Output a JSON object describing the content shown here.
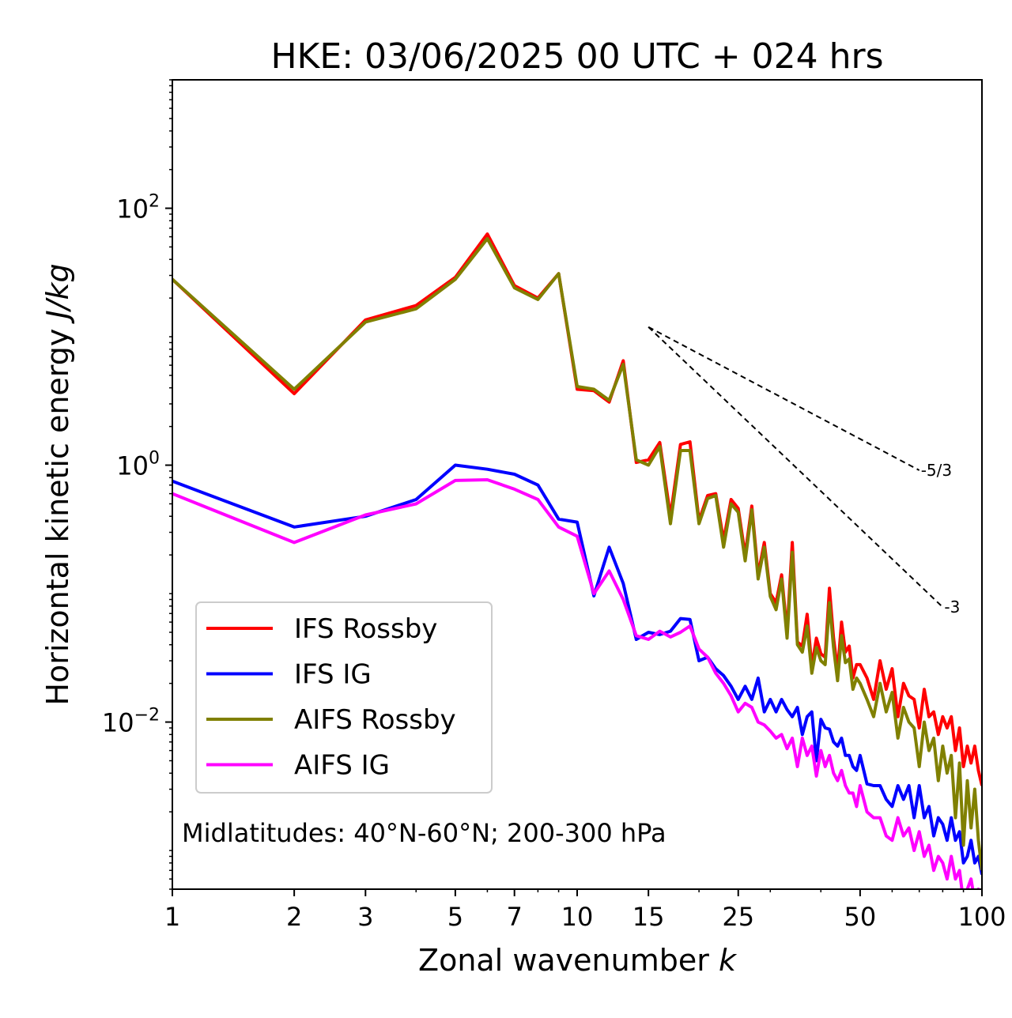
{
  "chart_data": {
    "type": "line",
    "title": "HKE: 03/06/2025 00 UTC + 024 hrs",
    "xlabel": "Zonal wavenumber",
    "xlabel_var": "k",
    "ylabel": "Horizontal kinetic energy",
    "ylabel_unit": "J/kg",
    "xscale": "log",
    "yscale": "log",
    "xlim": [
      1,
      100
    ],
    "ylim": [
      0.0005,
      1000
    ],
    "x_ticks": [
      1,
      2,
      3,
      5,
      7,
      10,
      15,
      25,
      50,
      100
    ],
    "x_tick_labels": [
      "1",
      "2",
      "3",
      "5",
      "7",
      "10",
      "15",
      "25",
      "50",
      "100"
    ],
    "y_ticks": [
      0.01,
      1,
      100
    ],
    "y_tick_labels": [
      {
        "base": "10",
        "exp": "−2"
      },
      {
        "base": "10",
        "exp": "0"
      },
      {
        "base": "10",
        "exp": "2"
      }
    ],
    "legend_position": "lower-left",
    "annotation": "Midlatitudes: 40°N-60°N; 200-300 hPa",
    "reference_slopes": [
      {
        "label": "-5/3",
        "slope": -1.6667,
        "x": [
          15,
          70
        ],
        "y0": 11.9
      },
      {
        "label": "-3",
        "slope": -3,
        "x": [
          15,
          80
        ],
        "y0": 11.9
      }
    ],
    "series": [
      {
        "name": "IFS Rossby",
        "color": "#ff0000",
        "x": [
          1,
          2,
          3,
          4,
          5,
          6,
          7,
          8,
          9,
          10,
          11,
          12,
          13,
          14,
          15,
          16,
          17,
          18,
          19,
          20,
          21,
          22,
          23,
          24,
          25,
          26,
          27,
          28,
          29,
          30,
          31,
          32,
          33,
          34,
          35,
          36,
          37,
          38,
          39,
          40,
          41,
          42,
          43,
          44,
          45,
          46,
          47,
          48,
          49,
          50,
          52,
          54,
          56,
          58,
          60,
          62,
          64,
          66,
          68,
          70,
          72,
          74,
          76,
          78,
          80,
          82,
          84,
          86,
          88,
          90,
          92,
          94,
          96,
          98,
          100
        ],
        "y": [
          28,
          3.6,
          13.5,
          17.5,
          29,
          63,
          25,
          20,
          31,
          3.9,
          3.8,
          3.1,
          6.5,
          1.05,
          1.1,
          1.5,
          0.4,
          1.45,
          1.52,
          0.37,
          0.58,
          0.6,
          0.26,
          0.54,
          0.46,
          0.2,
          0.48,
          0.14,
          0.25,
          0.1,
          0.085,
          0.14,
          0.05,
          0.25,
          0.042,
          0.039,
          0.069,
          0.027,
          0.045,
          0.034,
          0.032,
          0.11,
          0.045,
          0.025,
          0.06,
          0.035,
          0.039,
          0.022,
          0.028,
          0.028,
          0.022,
          0.015,
          0.03,
          0.018,
          0.026,
          0.011,
          0.02,
          0.016,
          0.015,
          0.009,
          0.018,
          0.011,
          0.012,
          0.008,
          0.011,
          0.009,
          0.011,
          0.006,
          0.009,
          0.0045,
          0.0065,
          0.0048,
          0.0065,
          0.0042,
          0.0032
        ]
      },
      {
        "name": "IFS IG",
        "color": "#0000ff",
        "x": [
          1,
          2,
          3,
          4,
          5,
          6,
          7,
          8,
          9,
          10,
          11,
          12,
          13,
          14,
          15,
          16,
          17,
          18,
          19,
          20,
          21,
          22,
          23,
          24,
          25,
          26,
          27,
          28,
          29,
          30,
          31,
          32,
          33,
          34,
          35,
          36,
          37,
          38,
          39,
          40,
          41,
          42,
          43,
          44,
          45,
          46,
          47,
          48,
          49,
          50,
          52,
          54,
          56,
          58,
          60,
          62,
          64,
          66,
          68,
          70,
          72,
          74,
          76,
          78,
          80,
          82,
          84,
          86,
          88,
          90,
          92,
          94,
          96,
          98,
          100
        ],
        "y": [
          0.75,
          0.33,
          0.4,
          0.54,
          1.0,
          0.93,
          0.85,
          0.7,
          0.38,
          0.36,
          0.096,
          0.23,
          0.12,
          0.044,
          0.05,
          0.048,
          0.051,
          0.064,
          0.063,
          0.03,
          0.032,
          0.026,
          0.023,
          0.019,
          0.015,
          0.019,
          0.015,
          0.022,
          0.012,
          0.015,
          0.012,
          0.015,
          0.0125,
          0.011,
          0.013,
          0.008,
          0.011,
          0.012,
          0.005,
          0.0105,
          0.009,
          0.0088,
          0.007,
          0.0065,
          0.0075,
          0.0055,
          0.0055,
          0.0045,
          0.0042,
          0.0055,
          0.0033,
          0.0032,
          0.0032,
          0.0025,
          0.0022,
          0.0032,
          0.0025,
          0.0032,
          0.0018,
          0.0032,
          0.0018,
          0.0022,
          0.0013,
          0.0018,
          0.0016,
          0.0012,
          0.0018,
          0.0012,
          0.0014,
          0.0008,
          0.0009,
          0.0012,
          0.0008,
          0.0009,
          0.00065
        ]
      },
      {
        "name": "AIFS Rossby",
        "color": "#808000",
        "x": [
          1,
          2,
          3,
          4,
          5,
          6,
          7,
          8,
          9,
          10,
          11,
          12,
          13,
          14,
          15,
          16,
          17,
          18,
          19,
          20,
          21,
          22,
          23,
          24,
          25,
          26,
          27,
          28,
          29,
          30,
          31,
          32,
          33,
          34,
          35,
          36,
          37,
          38,
          39,
          40,
          41,
          42,
          43,
          44,
          45,
          46,
          47,
          48,
          49,
          50,
          52,
          54,
          56,
          58,
          60,
          62,
          64,
          66,
          68,
          70,
          72,
          74,
          76,
          78,
          80,
          82,
          84,
          86,
          88,
          90,
          92,
          94,
          96,
          98,
          100
        ],
        "y": [
          28,
          3.9,
          13,
          16.5,
          28,
          58,
          24,
          19.5,
          31,
          4.1,
          3.9,
          3.2,
          6.1,
          1.1,
          1.0,
          1.4,
          0.35,
          1.3,
          1.3,
          0.35,
          0.55,
          0.58,
          0.23,
          0.5,
          0.43,
          0.18,
          0.45,
          0.13,
          0.23,
          0.095,
          0.075,
          0.13,
          0.045,
          0.21,
          0.04,
          0.035,
          0.056,
          0.024,
          0.038,
          0.03,
          0.028,
          0.085,
          0.038,
          0.021,
          0.047,
          0.029,
          0.031,
          0.018,
          0.022,
          0.02,
          0.015,
          0.011,
          0.02,
          0.012,
          0.017,
          0.0075,
          0.013,
          0.01,
          0.009,
          0.0045,
          0.01,
          0.006,
          0.0075,
          0.0035,
          0.0065,
          0.004,
          0.0055,
          0.0018,
          0.0048,
          0.0011,
          0.0035,
          0.0015,
          0.003,
          0.0012,
          0.0007
        ]
      },
      {
        "name": "AIFS IG",
        "color": "#ff00ff",
        "x": [
          1,
          2,
          3,
          4,
          5,
          6,
          7,
          8,
          9,
          10,
          11,
          12,
          13,
          14,
          15,
          16,
          17,
          18,
          19,
          20,
          21,
          22,
          23,
          24,
          25,
          26,
          27,
          28,
          29,
          30,
          31,
          32,
          33,
          34,
          35,
          36,
          37,
          38,
          39,
          40,
          41,
          42,
          43,
          44,
          45,
          46,
          47,
          48,
          49,
          50,
          52,
          54,
          56,
          58,
          60,
          62,
          64,
          66,
          68,
          70,
          72,
          74,
          76,
          78,
          80,
          82,
          84,
          86,
          88,
          90,
          92,
          94,
          96,
          98,
          100
        ],
        "y": [
          0.6,
          0.25,
          0.41,
          0.5,
          0.76,
          0.77,
          0.65,
          0.54,
          0.33,
          0.28,
          0.1,
          0.15,
          0.09,
          0.047,
          0.044,
          0.051,
          0.046,
          0.05,
          0.056,
          0.037,
          0.032,
          0.024,
          0.02,
          0.016,
          0.012,
          0.014,
          0.013,
          0.01,
          0.0095,
          0.0085,
          0.0075,
          0.008,
          0.0062,
          0.0075,
          0.0045,
          0.0075,
          0.0055,
          0.0065,
          0.0038,
          0.006,
          0.0045,
          0.0055,
          0.004,
          0.0035,
          0.0042,
          0.0032,
          0.0028,
          0.0028,
          0.0022,
          0.0032,
          0.002,
          0.0018,
          0.0018,
          0.0013,
          0.0012,
          0.0018,
          0.0013,
          0.0015,
          0.001,
          0.0014,
          0.0009,
          0.0011,
          0.0007,
          0.0009,
          0.0008,
          0.0006,
          0.0009,
          0.0006,
          0.0007,
          0.0004,
          0.0005,
          0.0006,
          0.0004,
          0.0005,
          0.0003
        ]
      }
    ]
  }
}
